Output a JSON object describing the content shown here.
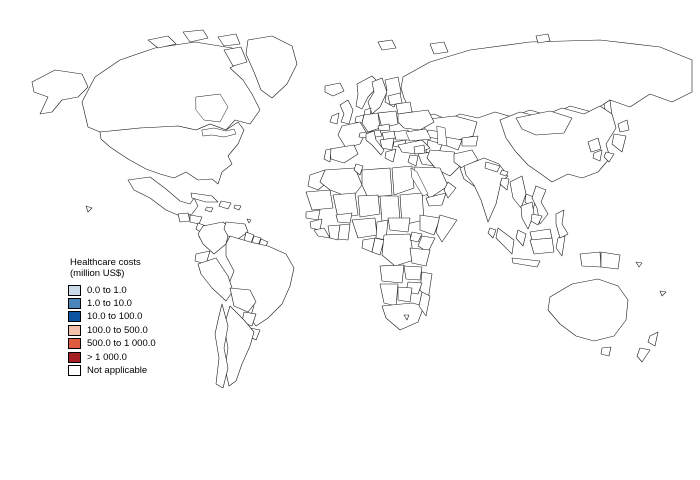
{
  "figure": {
    "type": "choropleth-world-map",
    "background": "#ffffff"
  },
  "legend": {
    "title_line1": "Healthcare costs",
    "title_line2": "(million US$)",
    "items": [
      {
        "label": "0.0 to 1.0",
        "color": "#c9daeb"
      },
      {
        "label": "1.0 to 10.0",
        "color": "#4a86b8"
      },
      {
        "label": "10.0 to 100.0",
        "color": "#0d55a3"
      },
      {
        "label": "100.0 to 500.0",
        "color": "#f5c0ab"
      },
      {
        "label": "500.0 to 1 000.0",
        "color": "#df5c40"
      },
      {
        "label": "> 1 000.0",
        "color": "#a32025"
      },
      {
        "label": "Not applicable",
        "color": "#ffffff"
      }
    ]
  },
  "map": {
    "border_color": "#1a1a1a",
    "ocean_color": "#ffffff",
    "countries": {
      "alaska": 5,
      "hawaii": 5,
      "canada": 5,
      "arctic-islands": 5,
      "greenland": 1,
      "usa": 5,
      "mexico": 4,
      "guatemala": 2,
      "honduras": 2,
      "nicaragua": 2,
      "costa-rica": 2,
      "panama": 2,
      "cuba": 5,
      "jamaica": 2,
      "hispaniola": 2,
      "puerto-rico": 2,
      "trinidad": 2,
      "colombia": 3,
      "venezuela": 2,
      "guyana": 0,
      "suriname": 1,
      "french-guiana": 5,
      "ecuador": 2,
      "peru": 3,
      "brazil": 5,
      "bolivia": 2,
      "paraguay": 2,
      "uruguay": 2,
      "argentina": 3,
      "chile": 3,
      "iceland": 2,
      "norway": 3,
      "sweden": 3,
      "finland": 3,
      "denmark": 5,
      "uk": 5,
      "ireland": 3,
      "benelux": 5,
      "germany": 5,
      "france": 5,
      "spain": 5,
      "portugal": 2,
      "switzerland": 6,
      "italy": 5,
      "austria": 3,
      "czechia": 3,
      "poland": 4,
      "hungary": 3,
      "balkans": 2,
      "greece": 2,
      "bulgaria": 2,
      "romania": 3,
      "ukraine": 3,
      "belarus": 2,
      "baltics": 2,
      "russia": 5,
      "svalbard": 5,
      "novaya-zemlya": 5,
      "severnaya-zemlya": 5,
      "sakhalin": 5,
      "kazakhstan": 2,
      "uzbekistan": 2,
      "turkmenistan": 6,
      "kyrgyzstan-tajikistan": 2,
      "caucasus": 2,
      "turkey": 2,
      "syria": 6,
      "iraq": 3,
      "jordan-israel": 2,
      "iran": 3,
      "afghanistan": 6,
      "pakistan": 3,
      "saudi-arabia": 3,
      "yemen": 1,
      "oman": 2,
      "morocco": 2,
      "algeria": 2,
      "tunisia": 2,
      "libya": 2,
      "egypt": 2,
      "mauritania": 0,
      "mali": 6,
      "niger": 6,
      "chad": 1,
      "sudan": 1,
      "ethiopia": 1,
      "somalia": 1,
      "senegal": 1,
      "guinea": 0,
      "sierra-leone-liberia": 1,
      "ivory-coast": 1,
      "ghana": 1,
      "burkina-faso": 0,
      "nigeria": 0,
      "cameroon": 0,
      "central-african-republic": 0,
      "gabon": 1,
      "congo": 1,
      "dr-congo": 1,
      "uganda": 1,
      "kenya": 2,
      "tanzania": 1,
      "angola": 6,
      "zambia": 1,
      "mozambique": 6,
      "zimbabwe": 1,
      "namibia": 1,
      "botswana": 1,
      "south-africa": 3,
      "lesotho": 1,
      "madagascar": 0,
      "india": 4,
      "nepal": 2,
      "bhutan": 1,
      "bangladesh": 2,
      "sri-lanka": 2,
      "china": 5,
      "mongolia": 1,
      "north-korea": 1,
      "south-korea": 5,
      "japan": 5,
      "myanmar": 2,
      "thailand": 1,
      "laos": 3,
      "vietnam": 2,
      "cambodia": 1,
      "malaysia": 3,
      "indonesia": 3,
      "philippines": 3,
      "papua-new-guinea": 1,
      "solomon-islands": 1,
      "fiji": 1,
      "australia": 5,
      "tasmania": 5,
      "new-zealand": 3
    }
  }
}
